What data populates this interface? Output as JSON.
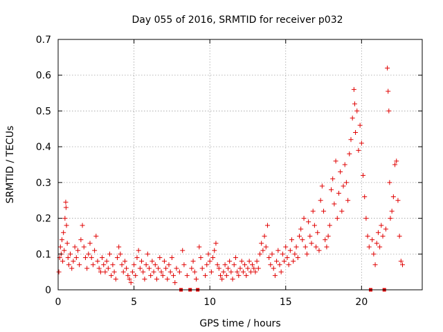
{
  "chart_data": {
    "type": "scatter",
    "title": "Day 055 of 2016, SRMTID for receiver p032",
    "xlabel": "GPS time / hours",
    "ylabel": "SRMTID / TECUs",
    "xlim": [
      0,
      24
    ],
    "ylim": [
      0,
      0.7
    ],
    "xticks": [
      0,
      5,
      10,
      15,
      20
    ],
    "yticks": [
      0,
      0.1,
      0.2,
      0.3,
      0.4,
      0.5,
      0.6,
      0.7
    ],
    "xtick_labels": [
      "0",
      "5",
      "10",
      "15",
      "20"
    ],
    "ytick_labels": [
      "0",
      "0.1",
      "0.2",
      "0.3",
      "0.4",
      "0.5",
      "0.6",
      "0.7"
    ],
    "grid": true,
    "marker": "plus",
    "color": "#e00000",
    "series": [
      {
        "name": "SRMTID",
        "points": [
          [
            0.05,
            0.05
          ],
          [
            0.1,
            0.09
          ],
          [
            0.15,
            0.12
          ],
          [
            0.2,
            0.1
          ],
          [
            0.25,
            0.14
          ],
          [
            0.3,
            0.08
          ],
          [
            0.35,
            0.16
          ],
          [
            0.4,
            0.11
          ],
          [
            0.45,
            0.2
          ],
          [
            0.5,
            0.245
          ],
          [
            0.52,
            0.23
          ],
          [
            0.55,
            0.18
          ],
          [
            0.6,
            0.13
          ],
          [
            0.65,
            0.09
          ],
          [
            0.7,
            0.07
          ],
          [
            0.8,
            0.1
          ],
          [
            0.9,
            0.06
          ],
          [
            1.0,
            0.08
          ],
          [
            1.1,
            0.12
          ],
          [
            1.2,
            0.09
          ],
          [
            1.3,
            0.11
          ],
          [
            1.4,
            0.07
          ],
          [
            1.5,
            0.14
          ],
          [
            1.6,
            0.18
          ],
          [
            1.7,
            0.12
          ],
          [
            1.8,
            0.09
          ],
          [
            1.9,
            0.06
          ],
          [
            2.0,
            0.1
          ],
          [
            2.1,
            0.13
          ],
          [
            2.2,
            0.09
          ],
          [
            2.3,
            0.07
          ],
          [
            2.4,
            0.11
          ],
          [
            2.5,
            0.15
          ],
          [
            2.6,
            0.08
          ],
          [
            2.7,
            0.06
          ],
          [
            2.8,
            0.05
          ],
          [
            2.9,
            0.09
          ],
          [
            3.0,
            0.07
          ],
          [
            3.1,
            0.05
          ],
          [
            3.2,
            0.08
          ],
          [
            3.3,
            0.06
          ],
          [
            3.4,
            0.1
          ],
          [
            3.5,
            0.04
          ],
          [
            3.6,
            0.07
          ],
          [
            3.7,
            0.05
          ],
          [
            3.8,
            0.03
          ],
          [
            3.9,
            0.09
          ],
          [
            4.0,
            0.12
          ],
          [
            4.1,
            0.1
          ],
          [
            4.2,
            0.07
          ],
          [
            4.3,
            0.05
          ],
          [
            4.4,
            0.08
          ],
          [
            4.5,
            0.06
          ],
          [
            4.6,
            0.04
          ],
          [
            4.7,
            0.03
          ],
          [
            4.8,
            0.02
          ],
          [
            4.9,
            0.05
          ],
          [
            5.0,
            0.07
          ],
          [
            5.1,
            0.04
          ],
          [
            5.2,
            0.09
          ],
          [
            5.3,
            0.11
          ],
          [
            5.4,
            0.06
          ],
          [
            5.5,
            0.08
          ],
          [
            5.6,
            0.05
          ],
          [
            5.7,
            0.03
          ],
          [
            5.8,
            0.07
          ],
          [
            5.9,
            0.1
          ],
          [
            6.0,
            0.06
          ],
          [
            6.1,
            0.04
          ],
          [
            6.2,
            0.08
          ],
          [
            6.3,
            0.05
          ],
          [
            6.4,
            0.07
          ],
          [
            6.5,
            0.03
          ],
          [
            6.6,
            0.06
          ],
          [
            6.7,
            0.09
          ],
          [
            6.8,
            0.05
          ],
          [
            6.9,
            0.04
          ],
          [
            7.0,
            0.08
          ],
          [
            7.1,
            0.06
          ],
          [
            7.2,
            0.03
          ],
          [
            7.3,
            0.07
          ],
          [
            7.4,
            0.05
          ],
          [
            7.5,
            0.09
          ],
          [
            7.6,
            0.04
          ],
          [
            7.7,
            0.02
          ],
          [
            7.8,
            0.06
          ],
          [
            8.0,
            0.05
          ],
          [
            8.1,
            0.0
          ],
          [
            8.2,
            0.11
          ],
          [
            8.3,
            0.07
          ],
          [
            8.5,
            0.04
          ],
          [
            8.7,
            0.0
          ],
          [
            8.8,
            0.06
          ],
          [
            8.9,
            0.08
          ],
          [
            9.0,
            0.05
          ],
          [
            9.1,
            0.03
          ],
          [
            9.2,
            0.0
          ],
          [
            9.3,
            0.12
          ],
          [
            9.4,
            0.09
          ],
          [
            9.5,
            0.06
          ],
          [
            9.7,
            0.04
          ],
          [
            9.8,
            0.07
          ],
          [
            9.9,
            0.1
          ],
          [
            10.0,
            0.08
          ],
          [
            10.1,
            0.05
          ],
          [
            10.2,
            0.09
          ],
          [
            10.3,
            0.11
          ],
          [
            10.4,
            0.13
          ],
          [
            10.5,
            0.07
          ],
          [
            10.6,
            0.06
          ],
          [
            10.7,
            0.04
          ],
          [
            10.8,
            0.03
          ],
          [
            10.9,
            0.05
          ],
          [
            11.0,
            0.07
          ],
          [
            11.1,
            0.04
          ],
          [
            11.2,
            0.06
          ],
          [
            11.3,
            0.08
          ],
          [
            11.4,
            0.05
          ],
          [
            11.5,
            0.03
          ],
          [
            11.6,
            0.07
          ],
          [
            11.7,
            0.09
          ],
          [
            11.8,
            0.05
          ],
          [
            11.9,
            0.04
          ],
          [
            12.0,
            0.06
          ],
          [
            12.1,
            0.08
          ],
          [
            12.2,
            0.05
          ],
          [
            12.3,
            0.07
          ],
          [
            12.4,
            0.04
          ],
          [
            12.5,
            0.06
          ],
          [
            12.6,
            0.08
          ],
          [
            12.7,
            0.05
          ],
          [
            12.8,
            0.07
          ],
          [
            12.9,
            0.06
          ],
          [
            13.0,
            0.05
          ],
          [
            13.1,
            0.08
          ],
          [
            13.2,
            0.06
          ],
          [
            13.3,
            0.1
          ],
          [
            13.4,
            0.13
          ],
          [
            13.5,
            0.11
          ],
          [
            13.6,
            0.15
          ],
          [
            13.7,
            0.12
          ],
          [
            13.8,
            0.18
          ],
          [
            13.9,
            0.09
          ],
          [
            14.0,
            0.07
          ],
          [
            14.1,
            0.1
          ],
          [
            14.2,
            0.06
          ],
          [
            14.3,
            0.04
          ],
          [
            14.4,
            0.08
          ],
          [
            14.5,
            0.11
          ],
          [
            14.6,
            0.07
          ],
          [
            14.7,
            0.05
          ],
          [
            14.8,
            0.1
          ],
          [
            14.9,
            0.08
          ],
          [
            15.0,
            0.12
          ],
          [
            15.1,
            0.09
          ],
          [
            15.2,
            0.07
          ],
          [
            15.3,
            0.11
          ],
          [
            15.4,
            0.14
          ],
          [
            15.5,
            0.08
          ],
          [
            15.6,
            0.1
          ],
          [
            15.7,
            0.12
          ],
          [
            15.8,
            0.09
          ],
          [
            15.9,
            0.15
          ],
          [
            16.0,
            0.17
          ],
          [
            16.1,
            0.14
          ],
          [
            16.2,
            0.2
          ],
          [
            16.3,
            0.12
          ],
          [
            16.4,
            0.1
          ],
          [
            16.5,
            0.19
          ],
          [
            16.6,
            0.15
          ],
          [
            16.7,
            0.13
          ],
          [
            16.8,
            0.22
          ],
          [
            16.9,
            0.18
          ],
          [
            17.0,
            0.12
          ],
          [
            17.1,
            0.16
          ],
          [
            17.2,
            0.11
          ],
          [
            17.3,
            0.25
          ],
          [
            17.4,
            0.29
          ],
          [
            17.5,
            0.22
          ],
          [
            17.6,
            0.14
          ],
          [
            17.7,
            0.12
          ],
          [
            17.8,
            0.15
          ],
          [
            17.9,
            0.18
          ],
          [
            18.0,
            0.28
          ],
          [
            18.1,
            0.31
          ],
          [
            18.2,
            0.24
          ],
          [
            18.3,
            0.36
          ],
          [
            18.4,
            0.2
          ],
          [
            18.5,
            0.27
          ],
          [
            18.6,
            0.33
          ],
          [
            18.7,
            0.22
          ],
          [
            18.8,
            0.29
          ],
          [
            18.9,
            0.35
          ],
          [
            19.0,
            0.3
          ],
          [
            19.1,
            0.25
          ],
          [
            19.2,
            0.38
          ],
          [
            19.3,
            0.42
          ],
          [
            19.4,
            0.48
          ],
          [
            19.5,
            0.56
          ],
          [
            19.55,
            0.52
          ],
          [
            19.6,
            0.44
          ],
          [
            19.7,
            0.5
          ],
          [
            19.8,
            0.39
          ],
          [
            19.9,
            0.46
          ],
          [
            20.0,
            0.41
          ],
          [
            20.1,
            0.32
          ],
          [
            20.2,
            0.26
          ],
          [
            20.3,
            0.2
          ],
          [
            20.4,
            0.15
          ],
          [
            20.5,
            0.12
          ],
          [
            20.6,
            0.0
          ],
          [
            20.7,
            0.14
          ],
          [
            20.8,
            0.1
          ],
          [
            20.9,
            0.07
          ],
          [
            21.0,
            0.13
          ],
          [
            21.1,
            0.16
          ],
          [
            21.2,
            0.12
          ],
          [
            21.3,
            0.18
          ],
          [
            21.4,
            0.15
          ],
          [
            21.5,
            0.0
          ],
          [
            21.6,
            0.17
          ],
          [
            21.7,
            0.62
          ],
          [
            21.75,
            0.555
          ],
          [
            21.8,
            0.5
          ],
          [
            21.85,
            0.3
          ],
          [
            21.9,
            0.2
          ],
          [
            22.0,
            0.22
          ],
          [
            22.1,
            0.26
          ],
          [
            22.2,
            0.35
          ],
          [
            22.3,
            0.36
          ],
          [
            22.4,
            0.25
          ],
          [
            22.5,
            0.15
          ],
          [
            22.6,
            0.08
          ],
          [
            22.7,
            0.07
          ]
        ]
      }
    ]
  }
}
